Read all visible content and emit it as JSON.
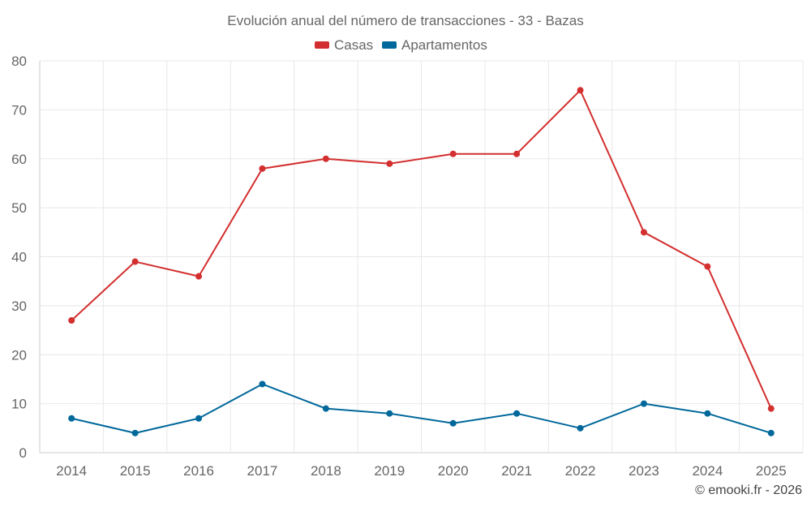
{
  "chart_data": {
    "type": "line",
    "title": "Evolución anual del número de transacciones - 33 - Bazas",
    "categories": [
      "2014",
      "2015",
      "2016",
      "2017",
      "2018",
      "2019",
      "2020",
      "2021",
      "2022",
      "2023",
      "2024",
      "2025"
    ],
    "series": [
      {
        "name": "Casas",
        "color": "#d32f2f",
        "values": [
          27,
          39,
          36,
          58,
          60,
          59,
          61,
          61,
          74,
          45,
          38,
          9
        ]
      },
      {
        "name": "Apartamentos",
        "color": "#01689b",
        "values": [
          7,
          4,
          7,
          14,
          9,
          8,
          6,
          8,
          5,
          10,
          8,
          4
        ]
      }
    ],
    "y_ticks": [
      "0",
      "10",
      "20",
      "30",
      "40",
      "50",
      "60",
      "70",
      "80"
    ],
    "ylim": [
      0,
      80
    ],
    "xlabel": "",
    "ylabel": "",
    "grid": true,
    "legend_position": "top-center"
  },
  "credit": "© emooki.fr - 2026"
}
